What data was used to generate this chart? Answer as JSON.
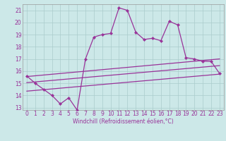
{
  "xlabel": "Windchill (Refroidissement éolien,°C)",
  "background_color": "#cce8e8",
  "line_color": "#993399",
  "xlim": [
    -0.5,
    23.5
  ],
  "ylim": [
    12.8,
    21.5
  ],
  "yticks": [
    13,
    14,
    15,
    16,
    17,
    18,
    19,
    20,
    21
  ],
  "xticks": [
    0,
    1,
    2,
    3,
    4,
    5,
    6,
    7,
    8,
    9,
    10,
    11,
    12,
    13,
    14,
    15,
    16,
    17,
    18,
    19,
    20,
    21,
    22,
    23
  ],
  "main_line_x": [
    0,
    1,
    2,
    3,
    4,
    5,
    6,
    7,
    8,
    9,
    10,
    11,
    12,
    13,
    14,
    15,
    16,
    17,
    18,
    19,
    20,
    21,
    22,
    23
  ],
  "main_line_y": [
    15.6,
    15.0,
    14.5,
    14.0,
    13.3,
    13.8,
    12.8,
    17.0,
    18.8,
    19.0,
    19.1,
    21.2,
    21.0,
    19.2,
    18.6,
    18.7,
    18.5,
    20.1,
    19.8,
    17.1,
    17.0,
    16.8,
    16.8,
    15.8
  ],
  "upper_line": [
    [
      0,
      15.55
    ],
    [
      23,
      17.0
    ]
  ],
  "mid_line": [
    [
      0,
      15.05
    ],
    [
      23,
      16.45
    ]
  ],
  "lower_line": [
    [
      0,
      14.35
    ],
    [
      23,
      15.75
    ]
  ],
  "grid_color": "#aacccc",
  "spine_color": "#999999",
  "xlabel_fontsize": 5.5,
  "tick_fontsize": 5.5,
  "linewidth": 0.9,
  "marker_size": 2.2
}
